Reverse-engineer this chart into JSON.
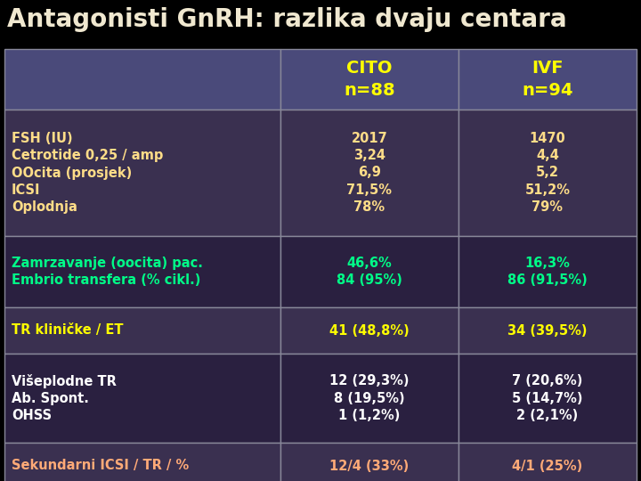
{
  "title": "Antagonisti GnRH: razlika dvaju centara",
  "title_color": "#F0E8D0",
  "title_fontsize": 20,
  "background_color": "#000000",
  "col1_header": "CITO\nn=88",
  "col2_header": "IVF\nn=94",
  "header_bg": "#4a4a7a",
  "rows": [
    {
      "label": "FSH (IU)\nCetrotide 0,25 / amp\nOOcita (prosjek)\nICSI\nOplodnja",
      "col1": "2017\n3,24\n6,9\n71,5%\n78%",
      "col2": "1470\n4,4\n5,2\n51,2%\n79%",
      "label_color": "#FFDD88",
      "data_color": "#FFDD88",
      "row_bg": "#3a3050"
    },
    {
      "label": "Zamrzavanje (oocita) pac.\nEmbrio transfera (% cikl.)",
      "col1": "46,6%\n84 (95%)",
      "col2": "16,3%\n86 (91,5%)",
      "label_color": "#00FF88",
      "data_color": "#00FF88",
      "row_bg": "#2a2040"
    },
    {
      "label": "TR kliničke / ET",
      "col1": "41 (48,8%)",
      "col2": "34 (39,5%)",
      "label_color": "#FFFF00",
      "data_color": "#FFFF00",
      "row_bg": "#3a3050"
    },
    {
      "label": "Višeplodne TR\nAb. Spont.\nOHSS",
      "col1": "12 (29,3%)\n8 (19,5%)\n1 (1,2%)",
      "col2": "7 (20,6%)\n5 (14,7%)\n2 (2,1%)",
      "label_color": "#FFFFFF",
      "data_color": "#FFFFFF",
      "row_bg": "#2a2040"
    },
    {
      "label": "Sekundarni ICSI / TR / %",
      "col1": "12/4 (33%)",
      "col2": "4/1 (25%)",
      "label_color": "#FFAA77",
      "data_color": "#FFAA77",
      "row_bg": "#3a3050"
    }
  ]
}
